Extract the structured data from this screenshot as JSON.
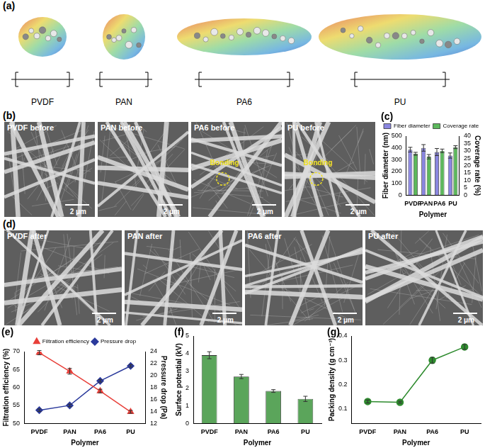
{
  "panels": {
    "a": {
      "label": "(a)",
      "polymers": [
        "PVDF",
        "PAN",
        "PA6",
        "PU"
      ]
    },
    "b": {
      "label": "(b)",
      "scale_bar": "2 μm",
      "images": [
        {
          "label": "PVDF before"
        },
        {
          "label": "PAN before"
        },
        {
          "label": "PA6 before",
          "annotation": "Bonding"
        },
        {
          "label": "PU before",
          "annotation": "Bonding"
        }
      ]
    },
    "d": {
      "label": "(d)",
      "scale_bar": "2 μm",
      "images": [
        {
          "label": "PVDF after"
        },
        {
          "label": "PAN after"
        },
        {
          "label": "PA6 after"
        },
        {
          "label": "PU after"
        }
      ]
    }
  },
  "chart_data": [
    {
      "title": "(c)",
      "type": "bar",
      "categories": [
        "PVDF",
        "PAN",
        "PA6",
        "PU"
      ],
      "x_label": "Polymer",
      "y_label": "Fiber diameter (nm)",
      "y2_label": "Coverage rate (%)",
      "ylim": [
        0,
        500
      ],
      "yticks": [
        0,
        100,
        200,
        300,
        400,
        500
      ],
      "y2lim": [
        0,
        40
      ],
      "y2ticks": [
        0,
        5,
        10,
        15,
        20,
        25,
        30,
        35,
        40
      ],
      "grid": false,
      "legend": "upper left",
      "series": [
        {
          "name": "Fiber diameter",
          "color": "#8a86e0",
          "values": [
            385,
            400,
            365,
            335
          ],
          "errors": [
            20,
            28,
            30,
            22
          ]
        },
        {
          "name": "Coverage rate",
          "color": "#5cb85c",
          "values": [
            28,
            26,
            30,
            32.5
          ],
          "errors": [
            1,
            1.5,
            1.2,
            1
          ],
          "axis": "y2"
        }
      ]
    },
    {
      "title": "(e)",
      "type": "line",
      "categories": [
        "PVDF",
        "PAN",
        "PA6",
        "PU"
      ],
      "x_label": "Polymer",
      "y_label": "Filtration efficiency (%)",
      "y2_label": "Pressure drop (Pa)",
      "ylim": [
        50,
        70
      ],
      "yticks": [
        50,
        55,
        60,
        65,
        70
      ],
      "y2lim": [
        12,
        24
      ],
      "y2ticks": [
        12,
        14,
        16,
        18,
        20,
        22,
        24
      ],
      "grid": false,
      "legend": "top",
      "series": [
        {
          "name": "Filtration efficiency",
          "color": "#e8403a",
          "marker": "triangle",
          "values": [
            69.7,
            64.5,
            59,
            53.2
          ],
          "errors": [
            0.6,
            0.8,
            0.5,
            0.4
          ]
        },
        {
          "name": "Pressure drop",
          "color": "#2b3a9c",
          "marker": "diamond",
          "values": [
            14.2,
            15,
            19.1,
            21.6
          ],
          "errors": [
            0.2,
            0.2,
            0.2,
            0.2
          ],
          "axis": "y2"
        }
      ]
    },
    {
      "title": "(f)",
      "type": "bar",
      "categories": [
        "PVDF",
        "PAN",
        "PA6",
        "PU"
      ],
      "x_label": "Polymer",
      "y_label": "Surface potential (kV)",
      "ylim": [
        0,
        5
      ],
      "yticks": [
        0,
        1,
        2,
        3,
        4,
        5
      ],
      "grid": false,
      "color": "#5ba55b",
      "values": [
        3.9,
        2.68,
        1.85,
        1.4
      ],
      "errors": [
        0.2,
        0.12,
        0.08,
        0.15
      ]
    },
    {
      "title": "(g)",
      "type": "line",
      "categories": [
        "PVDF",
        "PAN",
        "PA6",
        "PU"
      ],
      "x_label": "Polymer",
      "y_label": "Packing density (g cm⁻³)",
      "ylim": [
        0.04,
        0.4
      ],
      "yticks": [
        0.1,
        0.2,
        0.3,
        0.4
      ],
      "grid": false,
      "color": "#2e8b2e",
      "marker": "circle",
      "values": [
        0.13,
        0.127,
        0.3,
        0.355
      ],
      "errors": [
        0.006,
        0.004,
        0.012,
        0.01
      ]
    }
  ]
}
